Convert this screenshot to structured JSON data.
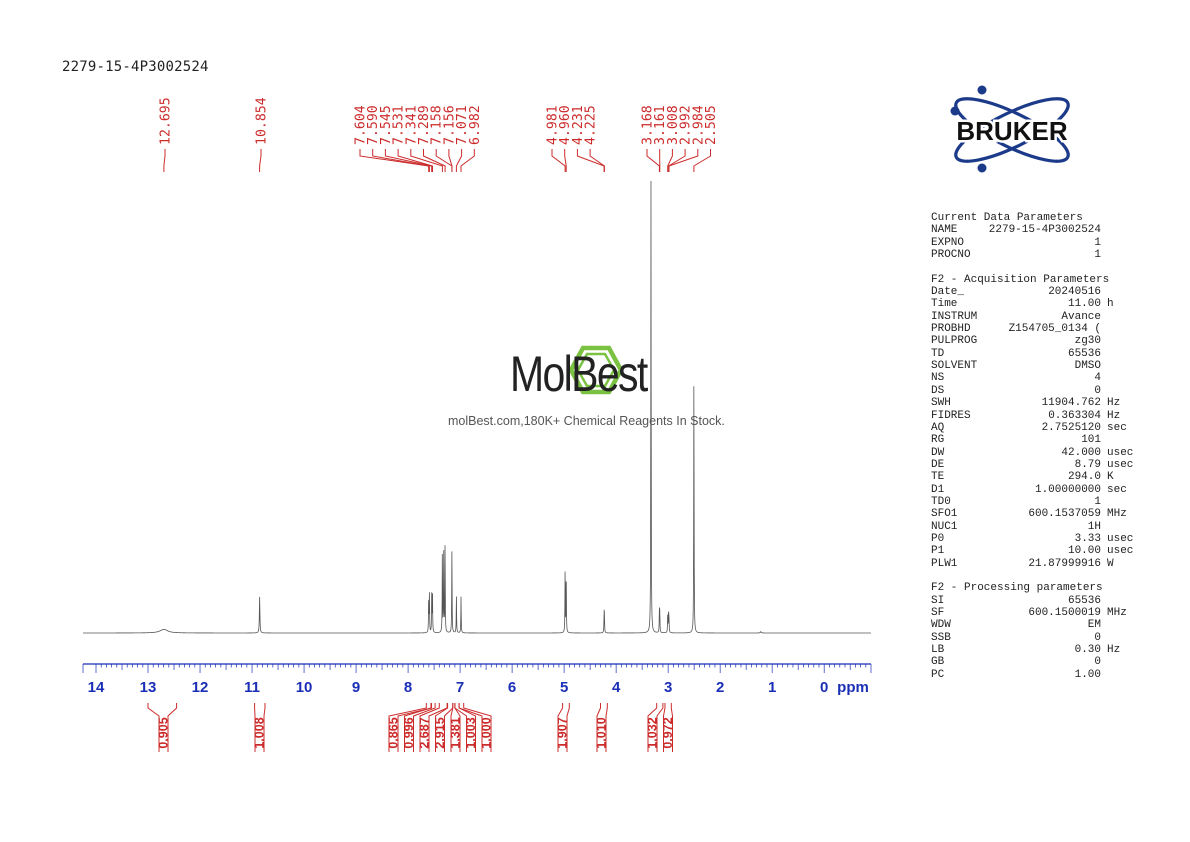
{
  "sample_name": "2279-15-4P3002524",
  "chart_data": {
    "type": "line",
    "xlabel": "ppm",
    "xlim": [
      14.25,
      -0.9
    ],
    "x_ticks": [
      14,
      13,
      12,
      11,
      10,
      9,
      8,
      7,
      6,
      5,
      4,
      3,
      2,
      1,
      0
    ],
    "peak_labels": [
      "12.695",
      "10.854",
      "7.604",
      "7.590",
      "7.545",
      "7.531",
      "7.341",
      "7.289",
      "7.158",
      "7.156",
      "7.071",
      "6.982",
      "4.981",
      "4.960",
      "4.231",
      "4.225",
      "3.168",
      "3.161",
      "3.008",
      "2.992",
      "2.984",
      "2.505"
    ],
    "peak_groups": [
      {
        "shift": 12.695,
        "labels": [
          "12.695"
        ]
      },
      {
        "shift": 10.854,
        "labels": [
          "10.854"
        ]
      },
      {
        "shift": 7.3,
        "labels": [
          "7.604",
          "7.590",
          "7.545",
          "7.531",
          "7.341",
          "7.289",
          "7.158",
          "7.156",
          "7.071",
          "6.982"
        ]
      },
      {
        "shift": 4.55,
        "labels": [
          "4.981",
          "4.960",
          "4.231",
          "4.225"
        ]
      },
      {
        "shift": 2.9,
        "labels": [
          "3.168",
          "3.161",
          "3.008",
          "2.992",
          "2.984",
          "2.505"
        ]
      }
    ],
    "integrals": [
      {
        "from": 13.0,
        "to": 12.45,
        "value": "0.905"
      },
      {
        "from": 10.95,
        "to": 10.75,
        "value": "1.008"
      },
      {
        "from": 7.65,
        "to": 7.55,
        "value": "0.865"
      },
      {
        "from": 7.56,
        "to": 7.48,
        "value": "0.996"
      },
      {
        "from": 7.4,
        "to": 7.25,
        "value": "2.687"
      },
      {
        "from": 7.24,
        "to": 7.14,
        "value": "2.915"
      },
      {
        "from": 7.14,
        "to": 7.1,
        "value": "1.381"
      },
      {
        "from": 7.1,
        "to": 7.02,
        "value": "1.003"
      },
      {
        "from": 7.02,
        "to": 6.93,
        "value": "1.000"
      },
      {
        "from": 5.03,
        "to": 4.9,
        "value": "1.907"
      },
      {
        "from": 4.3,
        "to": 4.17,
        "value": "1.010"
      },
      {
        "from": 3.22,
        "to": 3.1,
        "value": "1.032"
      },
      {
        "from": 3.06,
        "to": 2.94,
        "value": "0.972"
      }
    ],
    "peaks": [
      {
        "shift": 12.695,
        "height": 0.008,
        "width": 0.09
      },
      {
        "shift": 10.854,
        "height": 0.08,
        "width": 0.006
      },
      {
        "shift": 7.604,
        "height": 0.08,
        "width": 0.004
      },
      {
        "shift": 7.59,
        "height": 0.083,
        "width": 0.004
      },
      {
        "shift": 7.545,
        "height": 0.088,
        "width": 0.004
      },
      {
        "shift": 7.531,
        "height": 0.086,
        "width": 0.004
      },
      {
        "shift": 7.341,
        "height": 0.18,
        "width": 0.004
      },
      {
        "shift": 7.315,
        "height": 0.185,
        "width": 0.004
      },
      {
        "shift": 7.289,
        "height": 0.2,
        "width": 0.004
      },
      {
        "shift": 7.158,
        "height": 0.14,
        "width": 0.004
      },
      {
        "shift": 7.156,
        "height": 0.05,
        "width": 0.004
      },
      {
        "shift": 7.071,
        "height": 0.085,
        "width": 0.004
      },
      {
        "shift": 6.982,
        "height": 0.08,
        "width": 0.004
      },
      {
        "shift": 4.981,
        "height": 0.14,
        "width": 0.004
      },
      {
        "shift": 4.96,
        "height": 0.135,
        "width": 0.004
      },
      {
        "shift": 4.231,
        "height": 0.042,
        "width": 0.004
      },
      {
        "shift": 4.225,
        "height": 0.03,
        "width": 0.004
      },
      {
        "shift": 3.33,
        "height": 1.0,
        "width": 0.004
      },
      {
        "shift": 3.168,
        "height": 0.05,
        "width": 0.004
      },
      {
        "shift": 3.161,
        "height": 0.04,
        "width": 0.004
      },
      {
        "shift": 3.008,
        "height": 0.045,
        "width": 0.004
      },
      {
        "shift": 2.992,
        "height": 0.045,
        "width": 0.004
      },
      {
        "shift": 2.984,
        "height": 0.03,
        "width": 0.004
      },
      {
        "shift": 2.505,
        "height": 0.58,
        "width": 0.004
      },
      {
        "shift": 1.22,
        "height": 0.003,
        "width": 0.01
      }
    ]
  },
  "parameters": {
    "current": {
      "title": "Current Data Parameters",
      "rows": [
        {
          "key": "NAME",
          "value": "2279-15-4P3002524",
          "unit": ""
        },
        {
          "key": "EXPNO",
          "value": "1",
          "unit": ""
        },
        {
          "key": "PROCNO",
          "value": "1",
          "unit": ""
        }
      ]
    },
    "acquisition": {
      "title": "F2 - Acquisition Parameters",
      "rows": [
        {
          "key": "Date_",
          "value": "20240516",
          "unit": ""
        },
        {
          "key": "Time",
          "value": "11.00",
          "unit": "h"
        },
        {
          "key": "INSTRUM",
          "value": "Avance",
          "unit": ""
        },
        {
          "key": "PROBHD",
          "value": "Z154705_0134 (",
          "unit": ""
        },
        {
          "key": "PULPROG",
          "value": "zg30",
          "unit": ""
        },
        {
          "key": "TD",
          "value": "65536",
          "unit": ""
        },
        {
          "key": "SOLVENT",
          "value": "DMSO",
          "unit": ""
        },
        {
          "key": "NS",
          "value": "4",
          "unit": ""
        },
        {
          "key": "DS",
          "value": "0",
          "unit": ""
        },
        {
          "key": "SWH",
          "value": "11904.762",
          "unit": "Hz"
        },
        {
          "key": "FIDRES",
          "value": "0.363304",
          "unit": "Hz"
        },
        {
          "key": "AQ",
          "value": "2.7525120",
          "unit": "sec"
        },
        {
          "key": "RG",
          "value": "101",
          "unit": ""
        },
        {
          "key": "DW",
          "value": "42.000",
          "unit": "usec"
        },
        {
          "key": "DE",
          "value": "8.79",
          "unit": "usec"
        },
        {
          "key": "TE",
          "value": "294.0",
          "unit": "K"
        },
        {
          "key": "D1",
          "value": "1.00000000",
          "unit": "sec"
        },
        {
          "key": "TD0",
          "value": "1",
          "unit": ""
        },
        {
          "key": "SFO1",
          "value": "600.1537059",
          "unit": "MHz"
        },
        {
          "key": "NUC1",
          "value": "1H",
          "unit": ""
        },
        {
          "key": "P0",
          "value": "3.33",
          "unit": "usec"
        },
        {
          "key": "P1",
          "value": "10.00",
          "unit": "usec"
        },
        {
          "key": "PLW1",
          "value": "21.87999916",
          "unit": "W"
        }
      ]
    },
    "processing": {
      "title": "F2 - Processing parameters",
      "rows": [
        {
          "key": "SI",
          "value": "65536",
          "unit": ""
        },
        {
          "key": "SF",
          "value": "600.1500019",
          "unit": "MHz"
        },
        {
          "key": "WDW",
          "value": "EM",
          "unit": ""
        },
        {
          "key": "SSB",
          "value": "0",
          "unit": ""
        },
        {
          "key": "LB",
          "value": "0.30",
          "unit": "Hz"
        },
        {
          "key": "GB",
          "value": "0",
          "unit": ""
        },
        {
          "key": "PC",
          "value": "1.00",
          "unit": ""
        }
      ]
    }
  },
  "logo": {
    "text": "BRUKER",
    "color": "#1c3a8a"
  },
  "watermark": {
    "name": "MolBest",
    "tagline": "molBest.com,180K+ Chemical Reagents In Stock.",
    "icon": "benzene-ring-icon",
    "color": "#7cc242"
  },
  "colors": {
    "peak_labels": "#cc2b2b",
    "axis": "#1a2fb5",
    "spectrum": "#555555"
  }
}
